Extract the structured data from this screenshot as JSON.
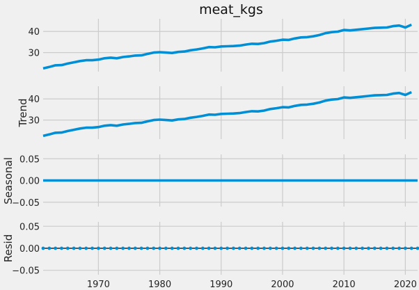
{
  "chart_data": [
    {
      "type": "line",
      "panel": "observed",
      "title": "meat_kgs",
      "ylabel": "",
      "x": [
        1961,
        1962,
        1963,
        1964,
        1965,
        1966,
        1967,
        1968,
        1969,
        1970,
        1971,
        1972,
        1973,
        1974,
        1975,
        1976,
        1977,
        1978,
        1979,
        1980,
        1981,
        1982,
        1983,
        1984,
        1985,
        1986,
        1987,
        1988,
        1989,
        1990,
        1991,
        1992,
        1993,
        1994,
        1995,
        1996,
        1997,
        1998,
        1999,
        2000,
        2001,
        2002,
        2003,
        2004,
        2005,
        2006,
        2007,
        2008,
        2009,
        2010,
        2011,
        2012,
        2013,
        2014,
        2015,
        2016,
        2017,
        2018,
        2019,
        2020,
        2021
      ],
      "values": [
        22.5,
        23.2,
        24.0,
        24.1,
        24.8,
        25.4,
        26.0,
        26.4,
        26.4,
        26.7,
        27.3,
        27.6,
        27.3,
        27.9,
        28.2,
        28.6,
        28.7,
        29.4,
        30.0,
        30.2,
        30.0,
        29.8,
        30.3,
        30.5,
        31.1,
        31.5,
        32.0,
        32.6,
        32.5,
        32.9,
        33.0,
        33.1,
        33.3,
        33.8,
        34.2,
        34.1,
        34.5,
        35.2,
        35.6,
        36.1,
        36.0,
        36.7,
        37.2,
        37.3,
        37.7,
        38.3,
        39.2,
        39.7,
        39.9,
        40.7,
        40.5,
        40.8,
        41.1,
        41.4,
        41.7,
        41.8,
        41.9,
        42.5,
        42.8,
        41.9,
        43.2
      ],
      "yticks": [
        30,
        40
      ],
      "ylim": [
        21,
        46
      ],
      "xlim": [
        1961,
        2022
      ]
    },
    {
      "type": "line",
      "panel": "trend",
      "title": "",
      "ylabel": "Trend",
      "x": [
        1961,
        1962,
        1963,
        1964,
        1965,
        1966,
        1967,
        1968,
        1969,
        1970,
        1971,
        1972,
        1973,
        1974,
        1975,
        1976,
        1977,
        1978,
        1979,
        1980,
        1981,
        1982,
        1983,
        1984,
        1985,
        1986,
        1987,
        1988,
        1989,
        1990,
        1991,
        1992,
        1993,
        1994,
        1995,
        1996,
        1997,
        1998,
        1999,
        2000,
        2001,
        2002,
        2003,
        2004,
        2005,
        2006,
        2007,
        2008,
        2009,
        2010,
        2011,
        2012,
        2013,
        2014,
        2015,
        2016,
        2017,
        2018,
        2019,
        2020,
        2021
      ],
      "values": [
        22.5,
        23.2,
        24.0,
        24.1,
        24.8,
        25.4,
        26.0,
        26.4,
        26.4,
        26.7,
        27.3,
        27.6,
        27.3,
        27.9,
        28.2,
        28.6,
        28.7,
        29.4,
        30.0,
        30.2,
        30.0,
        29.8,
        30.3,
        30.5,
        31.1,
        31.5,
        32.0,
        32.6,
        32.5,
        32.9,
        33.0,
        33.1,
        33.3,
        33.8,
        34.2,
        34.1,
        34.5,
        35.2,
        35.6,
        36.1,
        36.0,
        36.7,
        37.2,
        37.3,
        37.7,
        38.3,
        39.2,
        39.7,
        39.9,
        40.7,
        40.5,
        40.8,
        41.1,
        41.4,
        41.7,
        41.8,
        41.9,
        42.5,
        42.8,
        41.9,
        43.2
      ],
      "yticks": [
        30,
        40
      ],
      "ylim": [
        21,
        46
      ],
      "xlim": [
        1961,
        2022
      ]
    },
    {
      "type": "line",
      "panel": "seasonal",
      "title": "",
      "ylabel": "Seasonal",
      "x": [
        1961,
        2022
      ],
      "values": [
        0.0,
        0.0
      ],
      "yticks": [
        "0.05",
        "0.00",
        "−0.05"
      ],
      "ylim": [
        -0.06,
        0.06
      ],
      "xlim": [
        1961,
        2022
      ]
    },
    {
      "type": "scatter",
      "panel": "resid",
      "title": "",
      "ylabel": "Resid",
      "xlabel": "",
      "x_ticks": [
        "1970",
        "1980",
        "1990",
        "2000",
        "2010",
        "2020"
      ],
      "values_all": 0.0,
      "yticks": [
        "0.05",
        "0.00",
        "−0.05"
      ],
      "ylim": [
        -0.06,
        0.06
      ],
      "xlim": [
        1961,
        2022
      ]
    }
  ],
  "colors": {
    "line": "#008fd5",
    "background": "#f0f0f0",
    "grid": "#cbcbcb"
  }
}
